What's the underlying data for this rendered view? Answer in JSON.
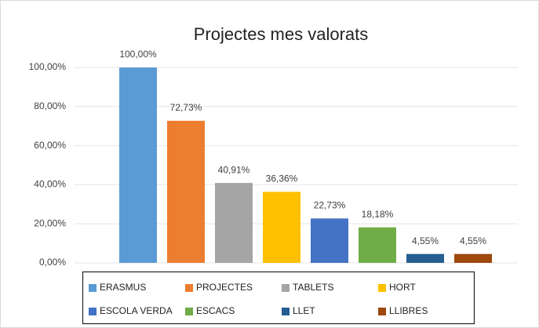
{
  "chart_data": {
    "type": "bar",
    "title": "Projectes mes valorats",
    "series": [
      {
        "name": "ERASMUS",
        "color": "#5b9bd5",
        "values": [
          100
        ],
        "value_labels": [
          "100,00%"
        ]
      },
      {
        "name": "PROJECTES",
        "color": "#ed7d31",
        "values": [
          72.73
        ],
        "value_labels": [
          "72,73%"
        ]
      },
      {
        "name": "TABLETS",
        "color": "#a5a5a5",
        "values": [
          40.91
        ],
        "value_labels": [
          "40,91%"
        ]
      },
      {
        "name": "HORT",
        "color": "#ffc000",
        "values": [
          36.36
        ],
        "value_labels": [
          "36,36%"
        ]
      },
      {
        "name": "ESCOLA VERDA",
        "color": "#4472c4",
        "values": [
          22.73
        ],
        "value_labels": [
          "22,73%"
        ]
      },
      {
        "name": "ESCACS",
        "color": "#70ad47",
        "values": [
          18.18
        ],
        "value_labels": [
          "18,18%"
        ]
      },
      {
        "name": "LLET",
        "color": "#255e91",
        "values": [
          4.55
        ],
        "value_labels": [
          "4,55%"
        ]
      },
      {
        "name": "LLIBRES",
        "color": "#9e480e",
        "values": [
          4.55
        ],
        "value_labels": [
          "4,55%"
        ]
      }
    ],
    "ylim": [
      0,
      100
    ],
    "yticks": [
      {
        "value": 0,
        "label": "0,00%"
      },
      {
        "value": 20,
        "label": "20,00%"
      },
      {
        "value": 40,
        "label": "40,00%"
      },
      {
        "value": 60,
        "label": "60,00%"
      },
      {
        "value": 80,
        "label": "80,00%"
      },
      {
        "value": 100,
        "label": "100,00%"
      }
    ],
    "grid": true,
    "legend": "bottom"
  }
}
